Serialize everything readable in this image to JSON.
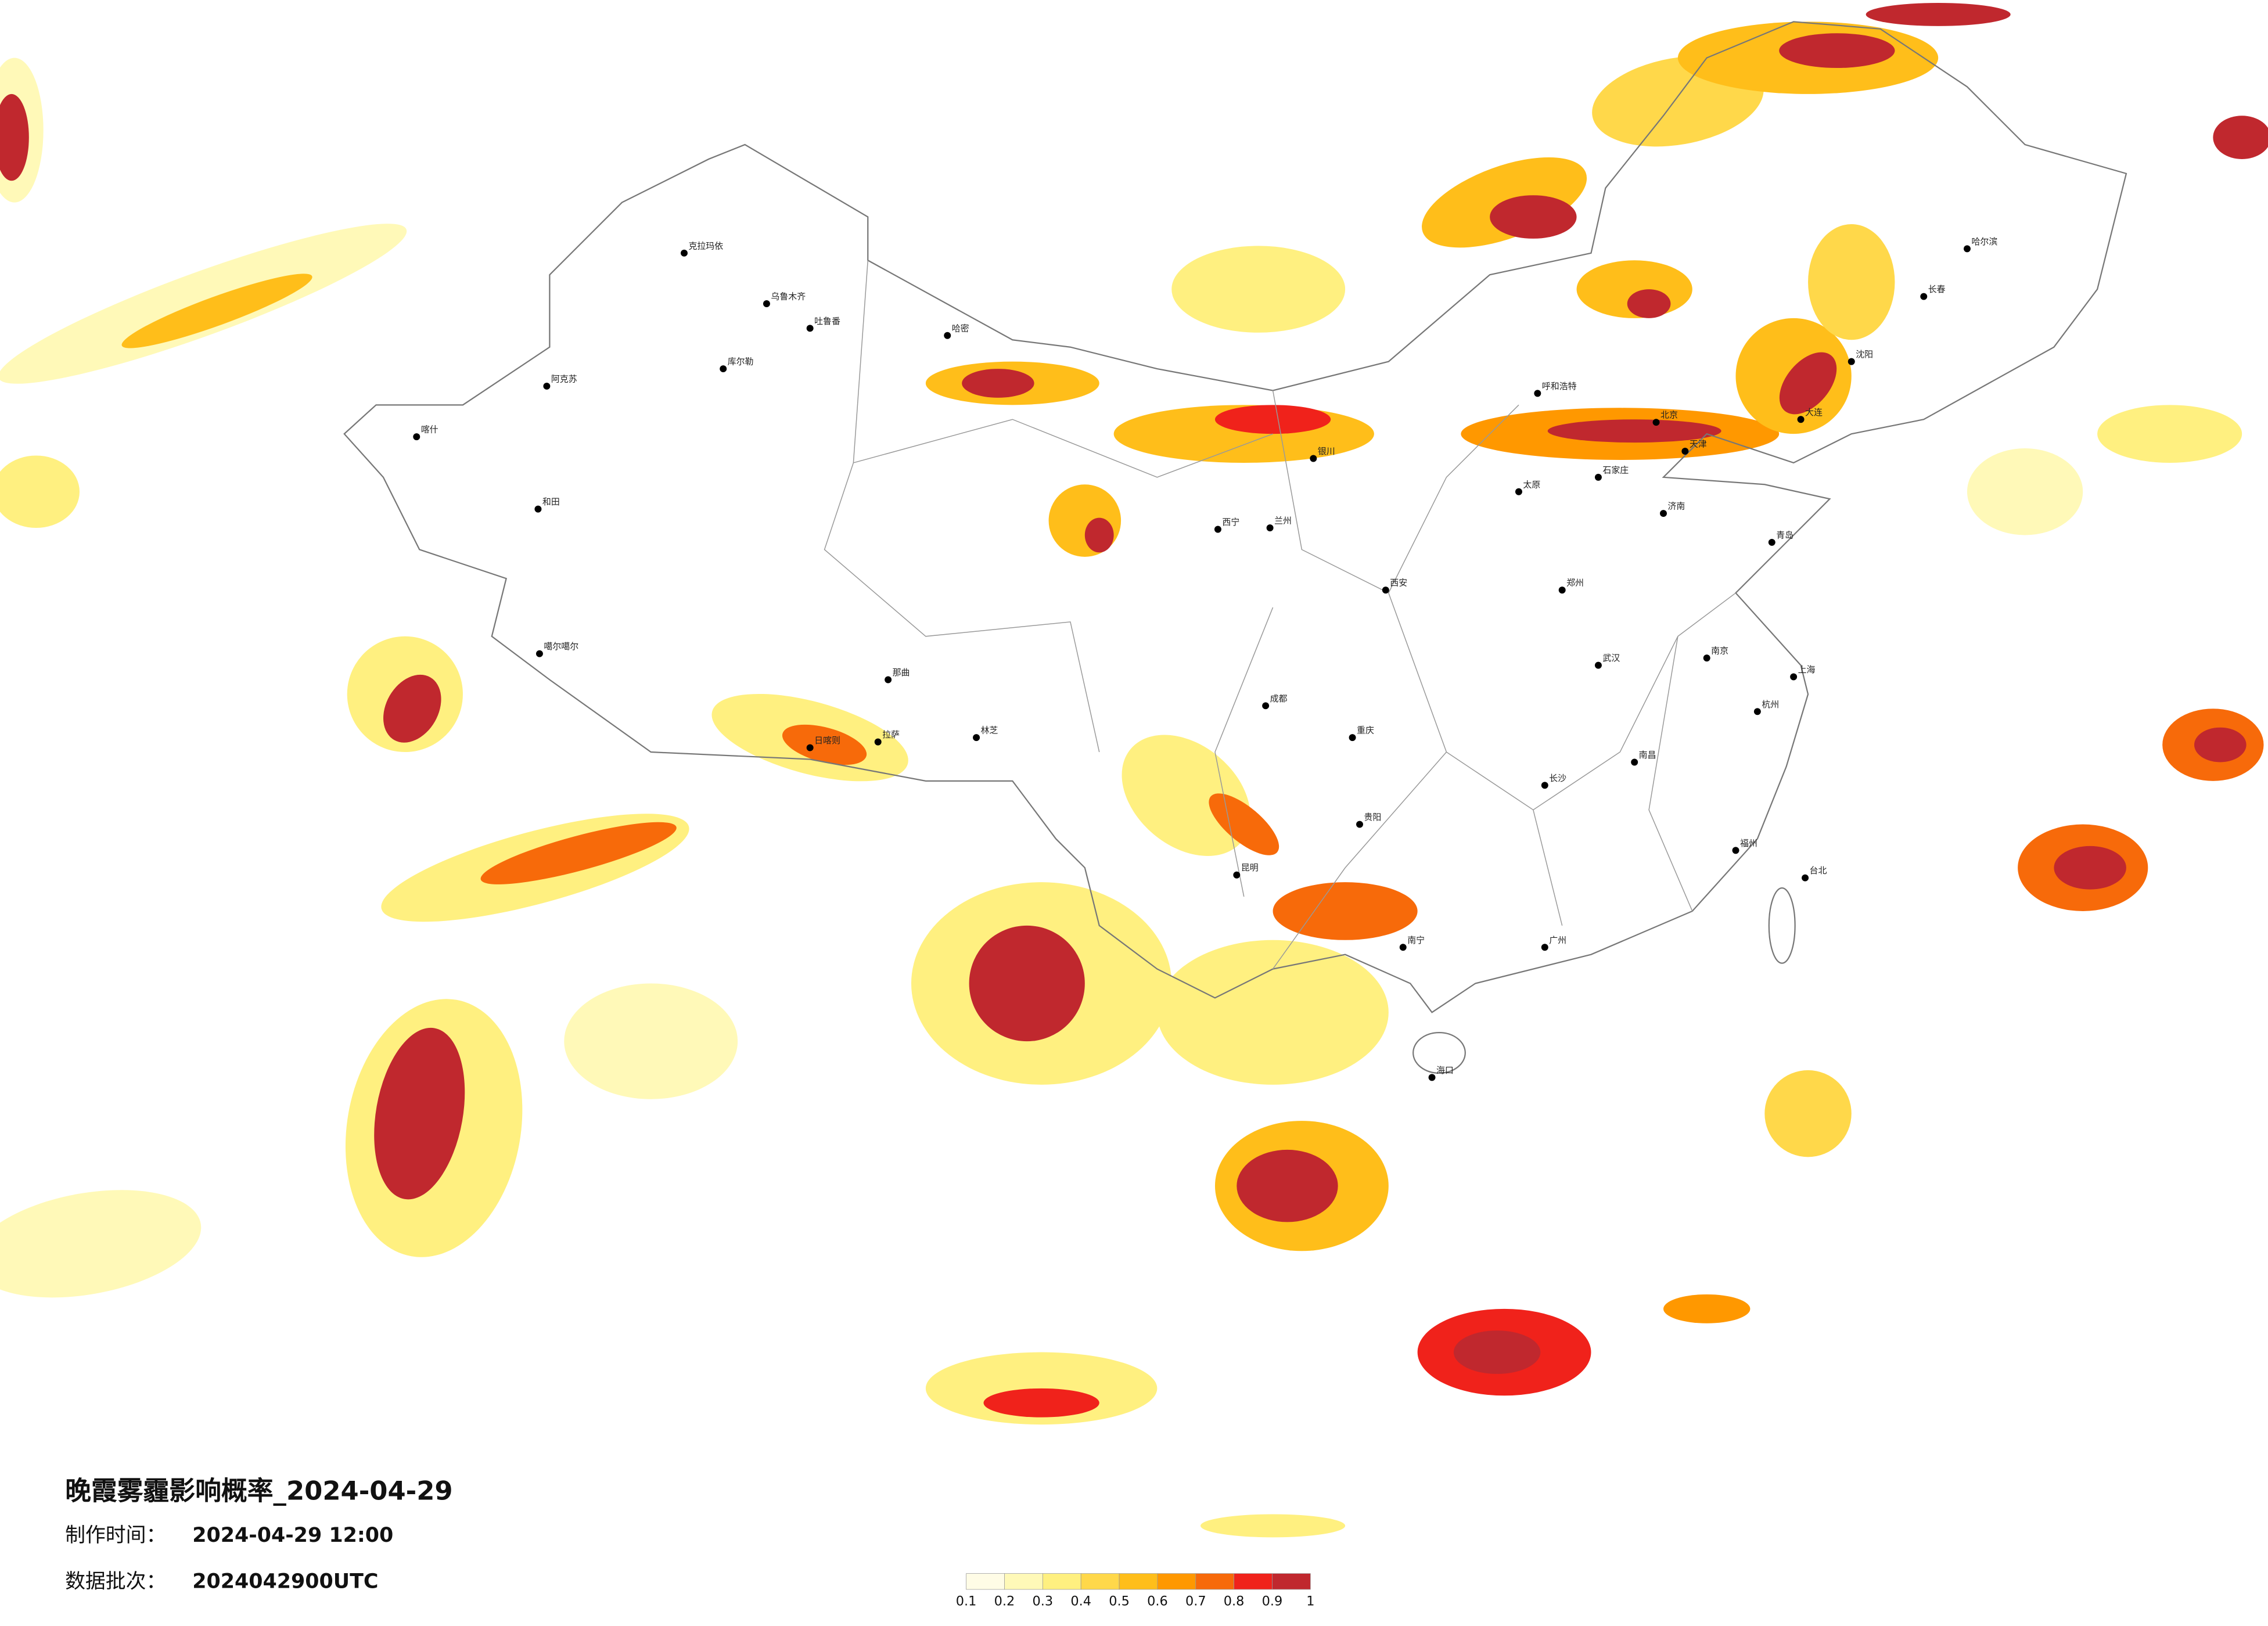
{
  "header": {
    "title": "晚霞雾霾影响概率_2024-04-29"
  },
  "info": [
    {
      "label": "制作时间：",
      "value": "2024-04-29 12:00"
    },
    {
      "label": "数据批次：",
      "value": "2024042900UTC"
    }
  ],
  "legend": {
    "ticks": [
      "0.1",
      "0.2",
      "0.3",
      "0.4",
      "0.5",
      "0.6",
      "0.7",
      "0.8",
      "0.9",
      "1"
    ],
    "colors": [
      "#fffce6",
      "#fff9b8",
      "#fff080",
      "#ffd84a",
      "#ffbe1a",
      "#ff9800",
      "#f76a0a",
      "#f0221b",
      "#c0282e"
    ]
  },
  "cities": [
    "克拉玛依",
    "乌鲁木齐",
    "吐鲁番",
    "哈密",
    "库尔勒",
    "阿克苏",
    "喀什",
    "和田",
    "噶尔噶尔",
    "日喀则",
    "拉萨",
    "林芝",
    "那曲",
    "西宁",
    "兰州",
    "银川",
    "呼和浩特",
    "北京",
    "天津",
    "石家庄",
    "太原",
    "济南",
    "郑州",
    "西安",
    "成都",
    "重庆",
    "武汉",
    "南京",
    "上海",
    "杭州",
    "长沙",
    "南昌",
    "福州",
    "广州",
    "南宁",
    "海口",
    "昆明",
    "贵阳",
    "台北",
    "哈尔滨",
    "长春",
    "沈阳",
    "大连",
    "青岛"
  ]
}
